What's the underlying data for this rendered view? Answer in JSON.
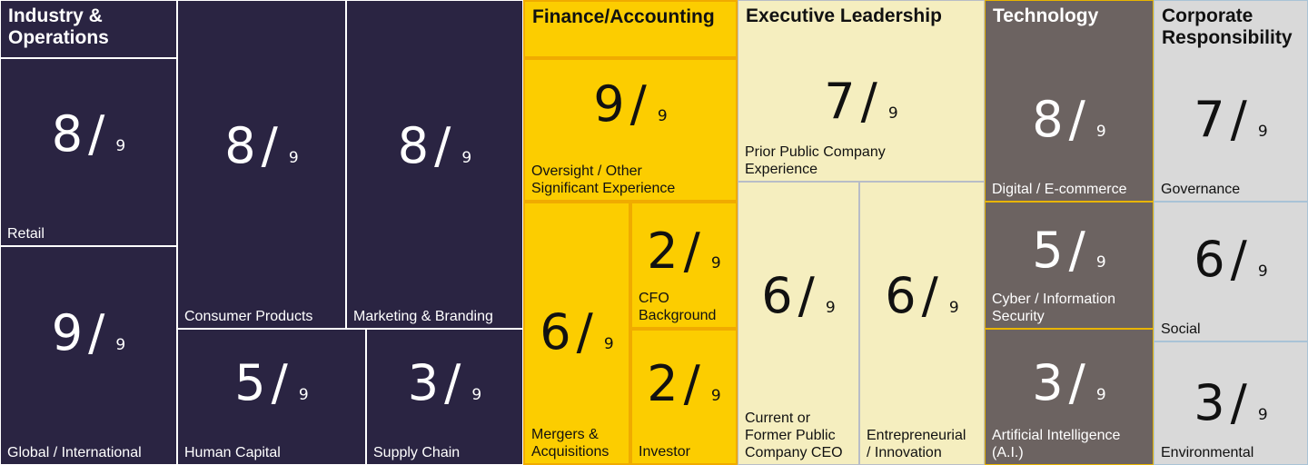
{
  "chart_data": {
    "type": "treemap",
    "denominator_label": "9",
    "groups": [
      {
        "key": "industry",
        "title": "Industry &\nOperations",
        "color": "#2a2442",
        "cells": [
          {
            "value": 8,
            "label": "Retail"
          },
          {
            "value": 9,
            "label": "Global / International"
          },
          {
            "value": 8,
            "label": "Consumer Products"
          },
          {
            "value": 8,
            "label": "Marketing & Branding"
          },
          {
            "value": 5,
            "label": "Human Capital"
          },
          {
            "value": 3,
            "label": "Supply Chain"
          }
        ]
      },
      {
        "key": "finance",
        "title": "Finance/Accounting",
        "color": "#fccd00",
        "cells": [
          {
            "value": 9,
            "label": "Oversight / Other\nSignificant Experience"
          },
          {
            "value": 6,
            "label": "Mergers &\nAcquisitions"
          },
          {
            "value": 2,
            "label": "CFO\nBackground"
          },
          {
            "value": 2,
            "label": "Investor"
          }
        ]
      },
      {
        "key": "executive",
        "title": "Executive Leadership",
        "color": "#f5eebf",
        "cells": [
          {
            "value": 7,
            "label": "Prior Public Company\nExperience"
          },
          {
            "value": 6,
            "label": "Current or\nFormer Public\nCompany CEO"
          },
          {
            "value": 6,
            "label": "Entrepreneurial\n/ Innovation"
          }
        ]
      },
      {
        "key": "technology",
        "title": "Technology",
        "color": "#6c6361",
        "cells": [
          {
            "value": 8,
            "label": "Digital / E-commerce"
          },
          {
            "value": 5,
            "label": "Cyber / Information\nSecurity"
          },
          {
            "value": 3,
            "label": "Artificial Intelligence\n(A.I.)"
          }
        ]
      },
      {
        "key": "responsibility",
        "title": "Corporate\nResponsibility",
        "color": "#d9d9d9",
        "cells": [
          {
            "value": 7,
            "label": "Governance"
          },
          {
            "value": 6,
            "label": "Social"
          },
          {
            "value": 3,
            "label": "Environmental"
          }
        ]
      }
    ]
  }
}
